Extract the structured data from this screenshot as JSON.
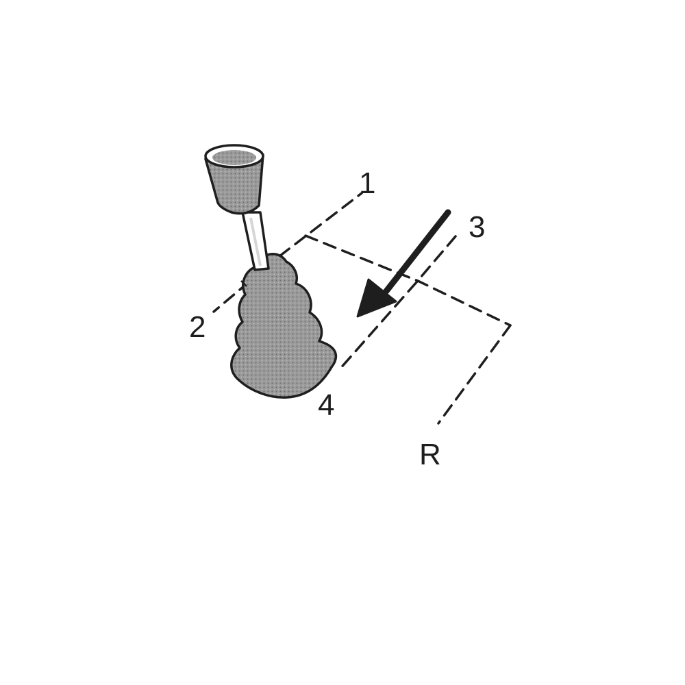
{
  "diagram": {
    "gear_labels": {
      "first": "1",
      "second": "2",
      "third": "3",
      "fourth": "4",
      "reverse": "R"
    },
    "colors": {
      "ink": "#1e1e1e",
      "boot_fill": "#8e8e8e",
      "knob_fill": "#9a9a9a",
      "paper": "#ffffff"
    },
    "icons": [
      "gear-lever-icon",
      "shift-direction-arrow"
    ]
  }
}
